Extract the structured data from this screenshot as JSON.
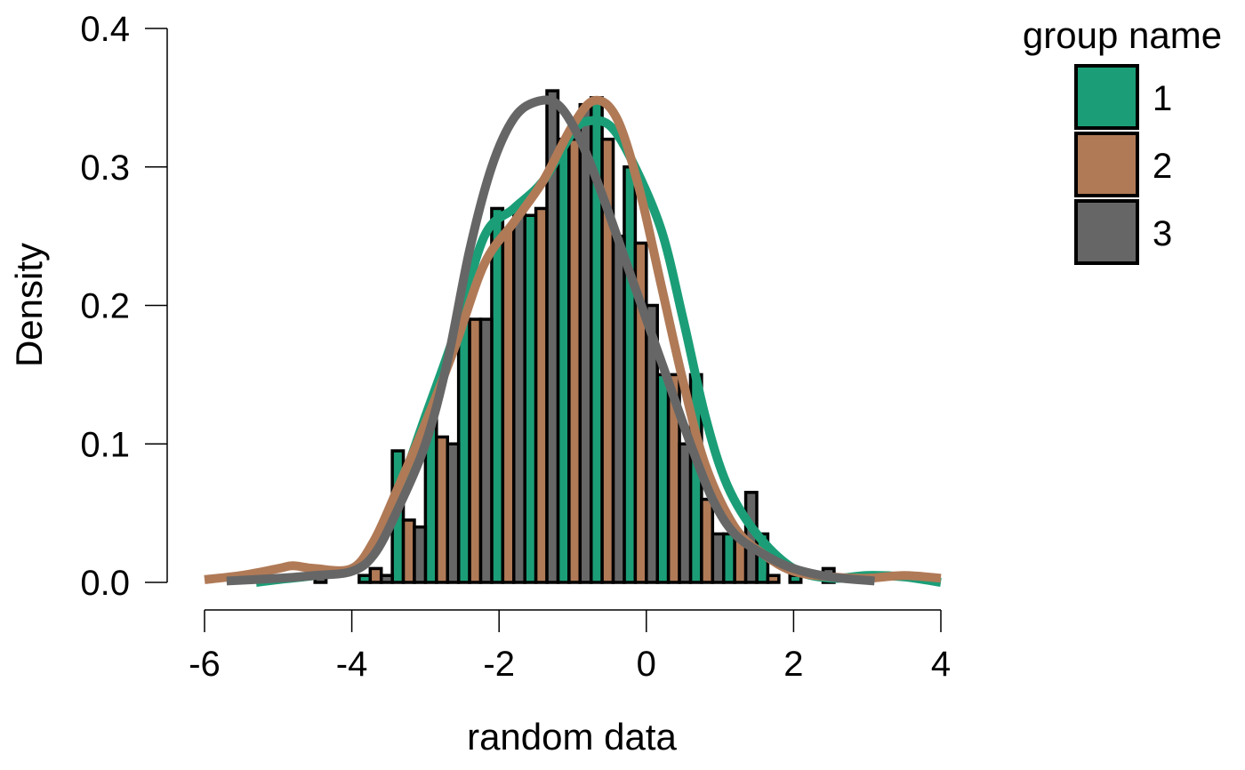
{
  "chart_data": {
    "type": "bar",
    "subtype": "histogram-with-density",
    "title": "",
    "xlabel": "random data",
    "ylabel": "Density",
    "xlim": [
      -6,
      4
    ],
    "ylim": [
      0,
      0.4
    ],
    "x_ticks": [
      -6,
      -4,
      -2,
      0,
      2,
      4
    ],
    "y_ticks": [
      0.0,
      0.1,
      0.2,
      0.3,
      0.4
    ],
    "y_tick_labels": [
      "0.0",
      "0.1",
      "0.2",
      "0.3",
      "0.4"
    ],
    "grid": false,
    "legend": {
      "title": "group name",
      "position": "top-right"
    },
    "bin_width": 0.15,
    "bins_start": -4.5,
    "series": [
      {
        "name": "1",
        "color": "#1b9e77",
        "histogram": [
          {
            "x0": -3.9,
            "density": 0.005
          },
          {
            "x0": -3.45,
            "density": 0.095
          },
          {
            "x0": -3.0,
            "density": 0.12
          },
          {
            "x0": -2.55,
            "density": 0.19
          },
          {
            "x0": -2.1,
            "density": 0.27
          },
          {
            "x0": -1.65,
            "density": 0.265
          },
          {
            "x0": -1.2,
            "density": 0.32
          },
          {
            "x0": -0.75,
            "density": 0.35
          },
          {
            "x0": -0.3,
            "density": 0.3
          },
          {
            "x0": 0.15,
            "density": 0.15
          },
          {
            "x0": 0.6,
            "density": 0.15
          },
          {
            "x0": 1.05,
            "density": 0.035
          },
          {
            "x0": 1.5,
            "density": 0.035
          },
          {
            "x0": 1.95,
            "density": 0.005
          }
        ],
        "density_curve": [
          [
            -5.3,
            0.0
          ],
          [
            -5.0,
            0.002
          ],
          [
            -4.5,
            0.005
          ],
          [
            -4.0,
            0.01
          ],
          [
            -3.7,
            0.025
          ],
          [
            -3.4,
            0.06
          ],
          [
            -3.0,
            0.12
          ],
          [
            -2.6,
            0.18
          ],
          [
            -2.2,
            0.25
          ],
          [
            -1.8,
            0.27
          ],
          [
            -1.4,
            0.29
          ],
          [
            -1.0,
            0.325
          ],
          [
            -0.8,
            0.333
          ],
          [
            -0.5,
            0.33
          ],
          [
            -0.2,
            0.305
          ],
          [
            0.2,
            0.255
          ],
          [
            0.5,
            0.19
          ],
          [
            0.8,
            0.12
          ],
          [
            1.1,
            0.07
          ],
          [
            1.5,
            0.035
          ],
          [
            2.0,
            0.01
          ],
          [
            2.5,
            0.003
          ],
          [
            3.0,
            0.005
          ],
          [
            3.5,
            0.004
          ],
          [
            4.0,
            0.0
          ]
        ]
      },
      {
        "name": "2",
        "color": "#b07a57",
        "histogram": [
          {
            "x0": -3.75,
            "density": 0.01
          },
          {
            "x0": -3.3,
            "density": 0.045
          },
          {
            "x0": -2.85,
            "density": 0.105
          },
          {
            "x0": -2.4,
            "density": 0.19
          },
          {
            "x0": -1.95,
            "density": 0.255
          },
          {
            "x0": -1.5,
            "density": 0.27
          },
          {
            "x0": -1.05,
            "density": 0.32
          },
          {
            "x0": -0.6,
            "density": 0.32
          },
          {
            "x0": -0.15,
            "density": 0.245
          },
          {
            "x0": 0.3,
            "density": 0.15
          },
          {
            "x0": 0.75,
            "density": 0.06
          },
          {
            "x0": 1.2,
            "density": 0.035
          },
          {
            "x0": 1.65,
            "density": 0.005
          }
        ],
        "density_curve": [
          [
            -6.0,
            0.002
          ],
          [
            -5.5,
            0.005
          ],
          [
            -5.0,
            0.01
          ],
          [
            -4.8,
            0.012
          ],
          [
            -4.5,
            0.01
          ],
          [
            -4.0,
            0.01
          ],
          [
            -3.7,
            0.03
          ],
          [
            -3.4,
            0.065
          ],
          [
            -3.0,
            0.115
          ],
          [
            -2.6,
            0.17
          ],
          [
            -2.2,
            0.23
          ],
          [
            -1.8,
            0.26
          ],
          [
            -1.4,
            0.29
          ],
          [
            -1.0,
            0.33
          ],
          [
            -0.7,
            0.348
          ],
          [
            -0.4,
            0.335
          ],
          [
            -0.1,
            0.285
          ],
          [
            0.2,
            0.215
          ],
          [
            0.5,
            0.145
          ],
          [
            0.8,
            0.085
          ],
          [
            1.2,
            0.04
          ],
          [
            1.6,
            0.02
          ],
          [
            2.0,
            0.008
          ],
          [
            2.5,
            0.004
          ],
          [
            3.0,
            0.003
          ],
          [
            3.5,
            0.005
          ],
          [
            4.0,
            0.003
          ]
        ]
      },
      {
        "name": "3",
        "color": "#666666",
        "histogram": [
          {
            "x0": -4.5,
            "density": 0.01
          },
          {
            "x0": -3.6,
            "density": 0.005
          },
          {
            "x0": -3.15,
            "density": 0.04
          },
          {
            "x0": -2.7,
            "density": 0.1
          },
          {
            "x0": -2.25,
            "density": 0.19
          },
          {
            "x0": -1.8,
            "density": 0.27
          },
          {
            "x0": -1.35,
            "density": 0.355
          },
          {
            "x0": -0.9,
            "density": 0.345
          },
          {
            "x0": -0.45,
            "density": 0.25
          },
          {
            "x0": 0.0,
            "density": 0.2
          },
          {
            "x0": 0.45,
            "density": 0.1
          },
          {
            "x0": 0.9,
            "density": 0.035
          },
          {
            "x0": 1.35,
            "density": 0.065
          },
          {
            "x0": 2.4,
            "density": 0.01
          }
        ],
        "density_curve": [
          [
            -5.7,
            0.001
          ],
          [
            -5.0,
            0.003
          ],
          [
            -4.5,
            0.005
          ],
          [
            -4.0,
            0.008
          ],
          [
            -3.7,
            0.02
          ],
          [
            -3.4,
            0.05
          ],
          [
            -3.0,
            0.1
          ],
          [
            -2.7,
            0.16
          ],
          [
            -2.4,
            0.24
          ],
          [
            -2.1,
            0.3
          ],
          [
            -1.8,
            0.335
          ],
          [
            -1.5,
            0.347
          ],
          [
            -1.2,
            0.345
          ],
          [
            -0.9,
            0.32
          ],
          [
            -0.6,
            0.28
          ],
          [
            -0.3,
            0.235
          ],
          [
            0.0,
            0.19
          ],
          [
            0.3,
            0.145
          ],
          [
            0.6,
            0.1
          ],
          [
            0.9,
            0.06
          ],
          [
            1.2,
            0.035
          ],
          [
            1.6,
            0.02
          ],
          [
            2.0,
            0.01
          ],
          [
            2.5,
            0.004
          ],
          [
            3.1,
            0.001
          ]
        ]
      }
    ]
  }
}
